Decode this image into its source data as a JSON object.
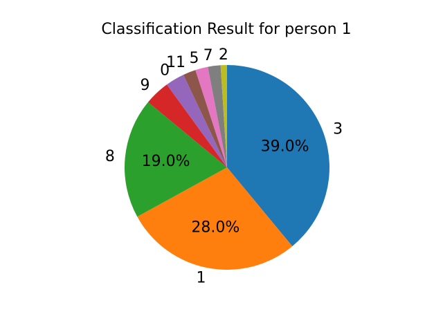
{
  "chart_data": {
    "type": "pie",
    "title": "Classification Result for person 1",
    "start_angle_deg": 90,
    "direction": "clockwise",
    "legend": "none",
    "slices": [
      {
        "label": "3",
        "value": 39,
        "pct_label": "39.0%",
        "color": "#1f77b4"
      },
      {
        "label": "1",
        "value": 28,
        "pct_label": "28.0%",
        "color": "#ff7f0e"
      },
      {
        "label": "8",
        "value": 19,
        "pct_label": "19.0%",
        "color": "#2ca02c"
      },
      {
        "label": "9",
        "value": 4,
        "pct_label": "",
        "color": "#d62728"
      },
      {
        "label": "0",
        "value": 3,
        "pct_label": "",
        "color": "#9467bd"
      },
      {
        "label": "11",
        "value": 2,
        "pct_label": "",
        "color": "#8c564b"
      },
      {
        "label": "5",
        "value": 2,
        "pct_label": "",
        "color": "#e377c2"
      },
      {
        "label": "7",
        "value": 2,
        "pct_label": "",
        "color": "#7f7f7f"
      },
      {
        "label": "2",
        "value": 1,
        "pct_label": "",
        "color": "#bcbd22"
      }
    ]
  }
}
